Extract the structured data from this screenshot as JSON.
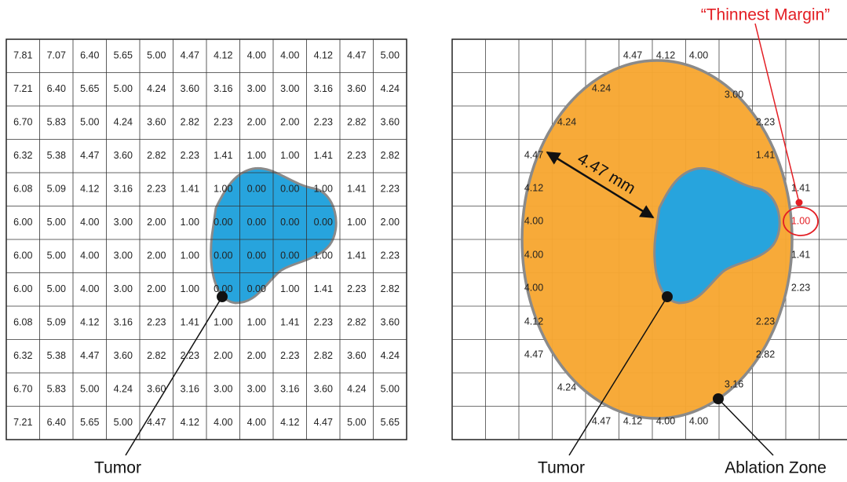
{
  "left_table": {
    "rows": [
      [
        "7.81",
        "7.07",
        "6.40",
        "5.65",
        "5.00",
        "4.47",
        "4.12",
        "4.00",
        "4.00",
        "4.12",
        "4.47",
        "5.00"
      ],
      [
        "7.21",
        "6.40",
        "5.65",
        "5.00",
        "4.24",
        "3.60",
        "3.16",
        "3.00",
        "3.00",
        "3.16",
        "3.60",
        "4.24"
      ],
      [
        "6.70",
        "5.83",
        "5.00",
        "4.24",
        "3.60",
        "2.82",
        "2.23",
        "2.00",
        "2.00",
        "2.23",
        "2.82",
        "3.60"
      ],
      [
        "6.32",
        "5.38",
        "4.47",
        "3.60",
        "2.82",
        "2.23",
        "1.41",
        "1.00",
        "1.00",
        "1.41",
        "2.23",
        "2.82"
      ],
      [
        "6.08",
        "5.09",
        "4.12",
        "3.16",
        "2.23",
        "1.41",
        "1.00",
        "0.00",
        "0.00",
        "1.00",
        "1.41",
        "2.23"
      ],
      [
        "6.00",
        "5.00",
        "4.00",
        "3.00",
        "2.00",
        "1.00",
        "0.00",
        "0.00",
        "0.00",
        "0.00",
        "1.00",
        "2.00"
      ],
      [
        "6.00",
        "5.00",
        "4.00",
        "3.00",
        "2.00",
        "1.00",
        "0.00",
        "0.00",
        "0.00",
        "1.00",
        "1.41",
        "2.23"
      ],
      [
        "6.00",
        "5.00",
        "4.00",
        "3.00",
        "2.00",
        "1.00",
        "0.00",
        "0.00",
        "1.00",
        "1.41",
        "2.23",
        "2.82"
      ],
      [
        "6.08",
        "5.09",
        "4.12",
        "3.16",
        "2.23",
        "1.41",
        "1.00",
        "1.00",
        "1.41",
        "2.23",
        "2.82",
        "3.60"
      ],
      [
        "6.32",
        "5.38",
        "4.47",
        "3.60",
        "2.82",
        "2.23",
        "2.00",
        "2.00",
        "2.23",
        "2.82",
        "3.60",
        "4.24"
      ],
      [
        "6.70",
        "5.83",
        "5.00",
        "4.24",
        "3.60",
        "3.16",
        "3.00",
        "3.00",
        "3.16",
        "3.60",
        "4.24",
        "5.00"
      ],
      [
        "7.21",
        "6.40",
        "5.65",
        "5.00",
        "4.47",
        "4.12",
        "4.00",
        "4.00",
        "4.12",
        "4.47",
        "5.00",
        "5.65"
      ]
    ]
  },
  "right_grid": {
    "labels": [
      "4.47",
      "4.12",
      "4.00",
      "4.24",
      "3.00",
      "4.24",
      "2.23",
      "4.47",
      "1.41",
      "4.12",
      "1.41",
      "4.00",
      "1.00",
      "4.00",
      "1.41",
      "4.00",
      "2.23",
      "4.12",
      "2.23",
      "4.47",
      "2.82",
      "4.24",
      "3.16",
      "4.47",
      "4.12",
      "4.00",
      "4.00"
    ]
  },
  "annotations": {
    "tumor_left": "Tumor",
    "tumor_right": "Tumor",
    "ablation_zone": "Ablation Zone",
    "distance": "4.47 mm",
    "thinnest_margin": "“Thinnest Margin”"
  }
}
